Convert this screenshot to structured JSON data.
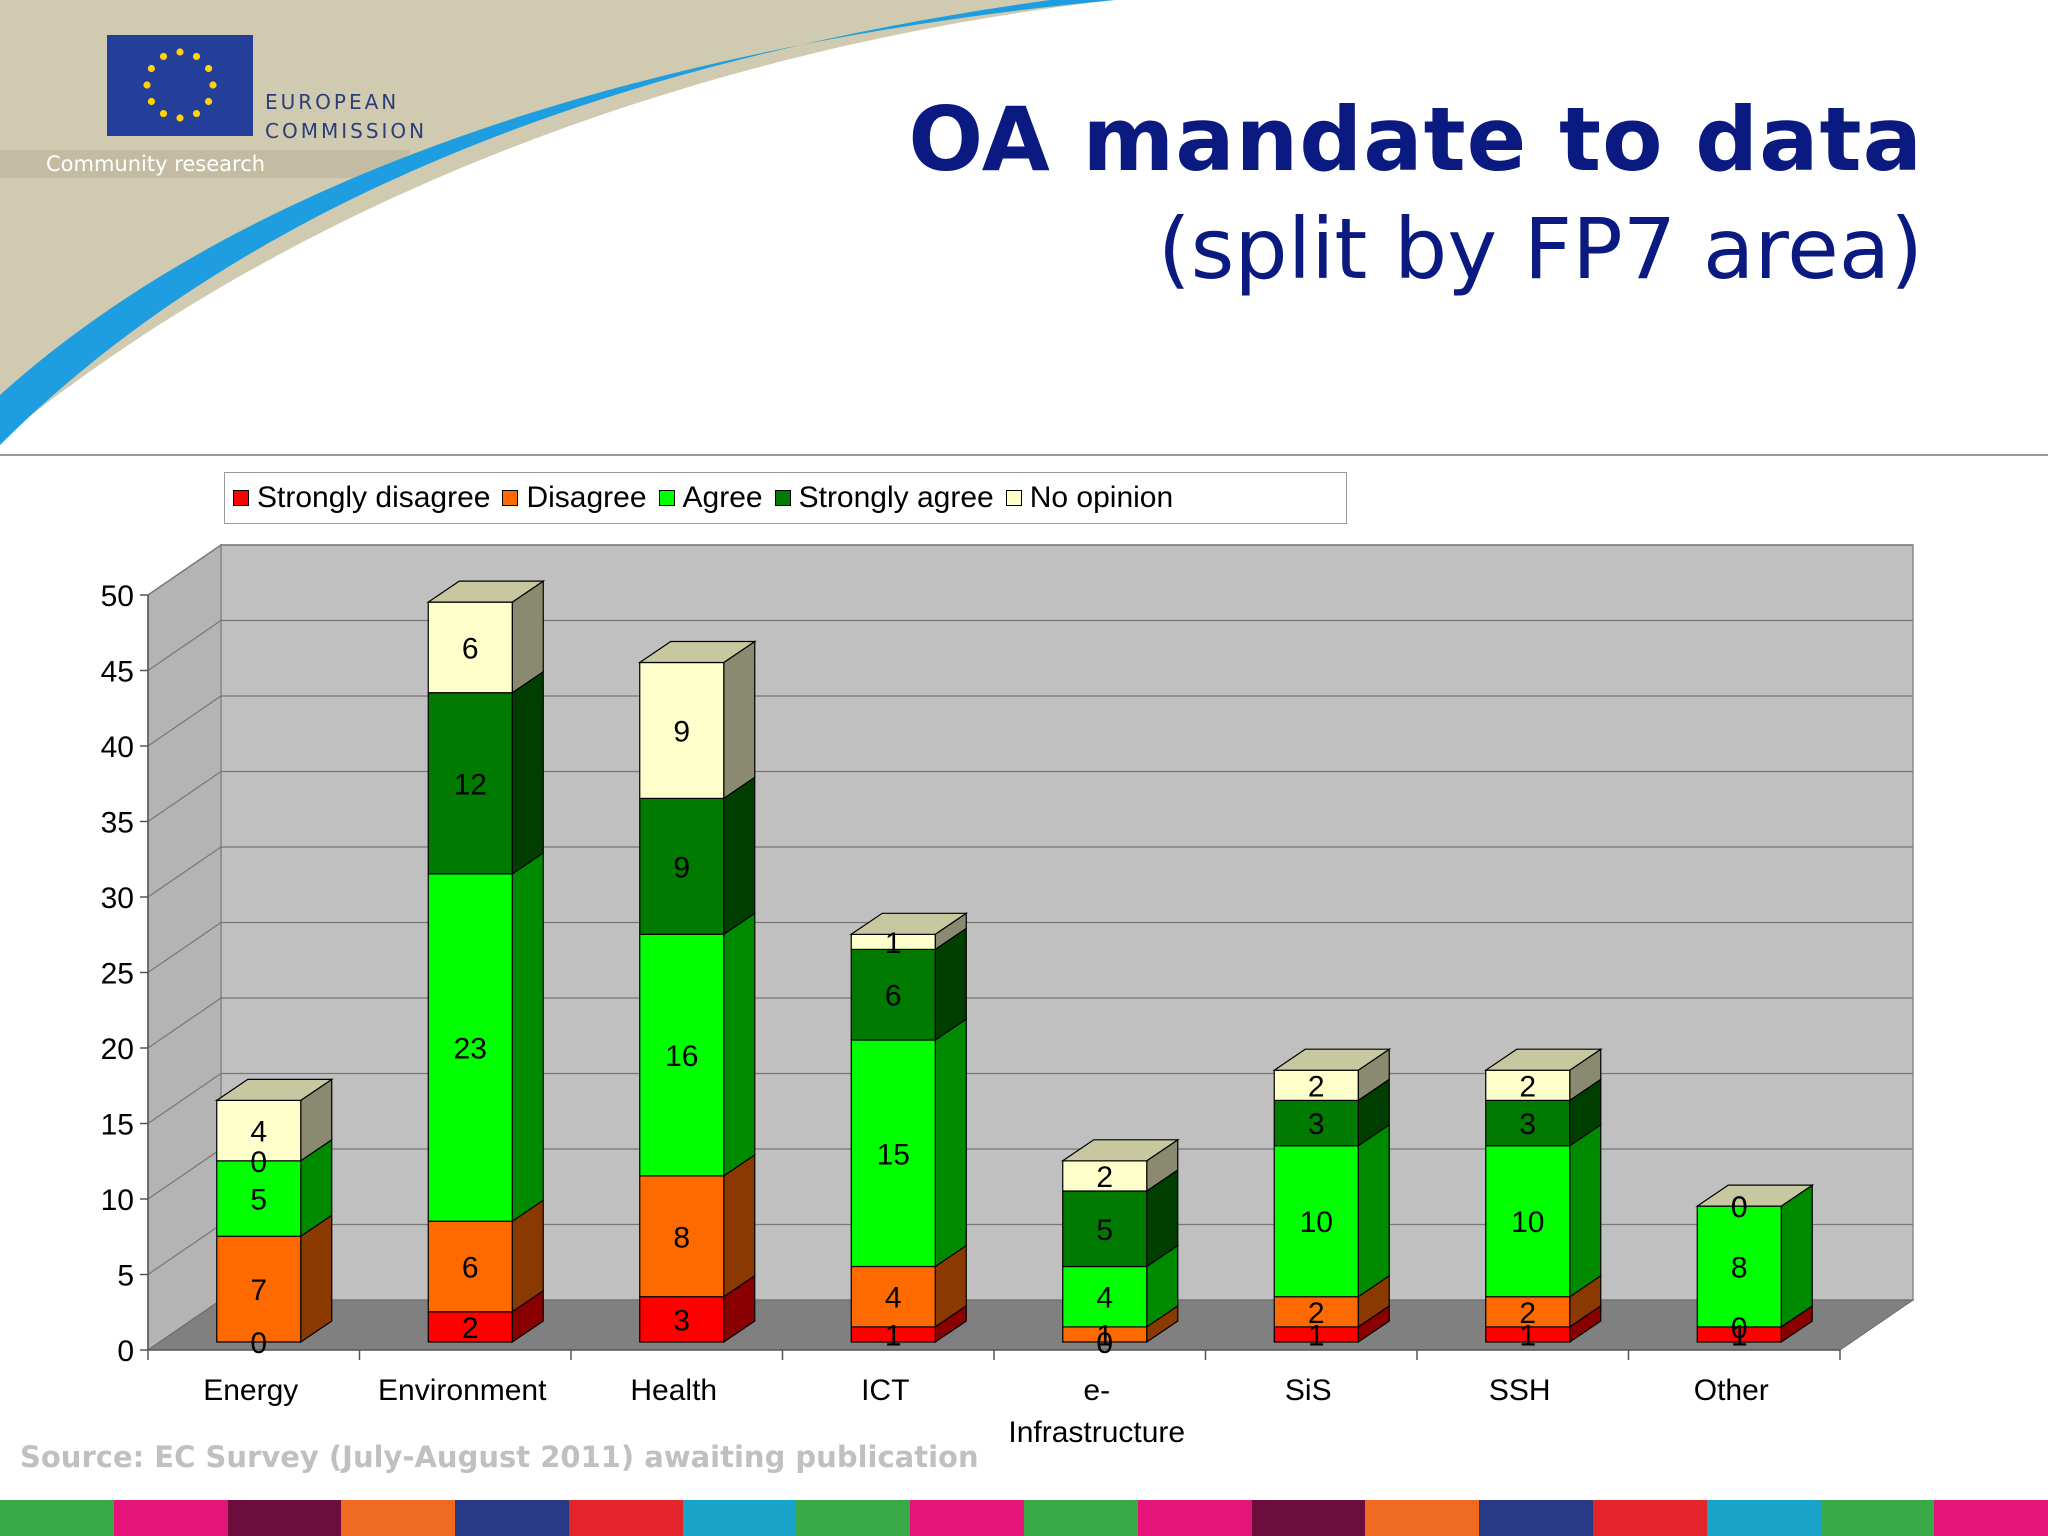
{
  "header": {
    "logo_line1": "EUROPEAN",
    "logo_line2": "COMMISSION",
    "logo_tagline": "Community research",
    "title_line1": "OA mandate to data",
    "title_line2": "(split by FP7 area)"
  },
  "footer": {
    "source": "Source: EC Survey (July-August 2011) awaiting publication"
  },
  "colors": {
    "title": "#0b1a80",
    "band": "#cfcab0",
    "swoosh": "#1e9ee0"
  },
  "bottom_bar_colors": [
    "#3aaa48",
    "#e6157a",
    "#6b0e3e",
    "#ef6b22",
    "#283a86",
    "#e3242b",
    "#1aa3c9",
    "#3aaa48",
    "#e6157a",
    "#3aaa48",
    "#e6157a",
    "#6b0e3e",
    "#ef6b22",
    "#283a86",
    "#e3242b",
    "#1aa3c9",
    "#3aaa48",
    "#e6157a"
  ],
  "chart_data": {
    "type": "bar",
    "stacked": true,
    "three_d": true,
    "title": "OA mandate to data (split by FP7 area)",
    "categories": [
      "Energy",
      "Environment",
      "Health",
      "ICT",
      "e-Infrastructure",
      "SiS",
      "SSH",
      "Other"
    ],
    "category_lines": [
      [
        "Energy"
      ],
      [
        "Environment"
      ],
      [
        "Health"
      ],
      [
        "ICT"
      ],
      [
        "e-",
        "Infrastructure"
      ],
      [
        "SiS"
      ],
      [
        "SSH"
      ],
      [
        "Other"
      ]
    ],
    "series": [
      {
        "name": "Strongly disagree",
        "color": "#ff0000",
        "side": "#8a0000",
        "values": [
          0,
          2,
          3,
          1,
          0,
          1,
          1,
          1
        ]
      },
      {
        "name": "Disagree",
        "color": "#ff6a00",
        "side": "#8a3a00",
        "values": [
          7,
          6,
          8,
          4,
          1,
          2,
          2,
          0
        ]
      },
      {
        "name": "Agree",
        "color": "#00ff00",
        "side": "#008a00",
        "values": [
          5,
          23,
          16,
          15,
          4,
          10,
          10,
          8
        ]
      },
      {
        "name": "Strongly agree",
        "color": "#007a00",
        "side": "#003f00",
        "values": [
          0,
          12,
          9,
          6,
          5,
          3,
          3,
          0
        ]
      },
      {
        "name": "No opinion",
        "color": "#ffffcc",
        "side": "#8a8a70",
        "values": [
          4,
          6,
          9,
          1,
          2,
          2,
          2,
          0
        ]
      }
    ],
    "y_ticks": [
      0,
      5,
      10,
      15,
      20,
      25,
      30,
      35,
      40,
      45,
      50
    ],
    "ylim": [
      0,
      50
    ],
    "grid": true,
    "legend": "top",
    "xlabel": "",
    "ylabel": ""
  }
}
